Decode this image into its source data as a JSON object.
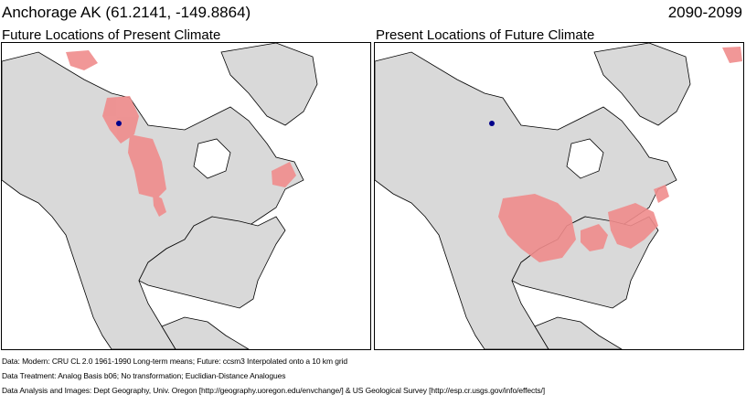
{
  "header": {
    "location_title": "Anchorage AK  (61.2141, -149.8864)",
    "period": "2090-2099"
  },
  "panels": {
    "left_title": "Future Locations of Present Climate",
    "right_title": "Present Locations of Future Climate"
  },
  "colors": {
    "land": "#d9d9d9",
    "ocean": "#ffffff",
    "analog_match": "#f08c8c",
    "site_marker": "#00008b",
    "borders": "#000000"
  },
  "icons": {
    "site_marker": "blue-dot",
    "analog_region": "red-shading"
  },
  "footer": {
    "line1": "Data:  Modern: CRU CL 2.0 1961-1990 Long-term means; Future: ccsm3 Interpolated onto a 10 km grid",
    "line2": "Data Treatment:  Analog Basis b06; No transformation; Euclidian-Distance Analogues",
    "line3": "Data Analysis and Images:  Dept Geography, Univ. Oregon [http://geography.uoregon.edu/envchange/] & US Geological Survey [http://esp.cr.usgs.gov/info/effects/]"
  }
}
